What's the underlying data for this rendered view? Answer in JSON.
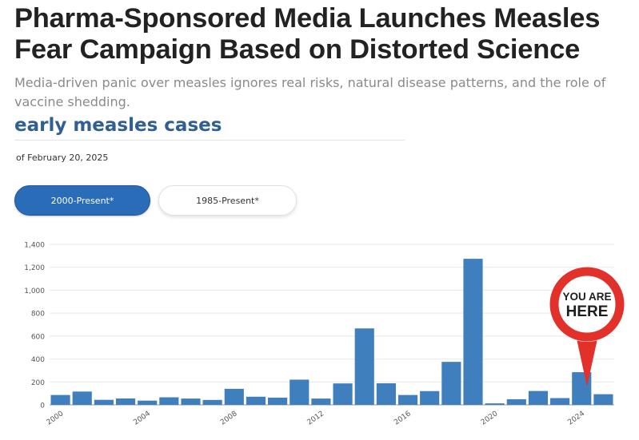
{
  "headline": "Pharma-Sponsored Media Launches Measles Fear Campaign Based on Distorted Science",
  "subtitle": "Media-driven panic over measles ignores real risks, natural disease patterns, and the role of vaccine shedding.",
  "chart_title": "early measles cases",
  "as_of": "of February 20, 2025",
  "buttons": {
    "active": "2000-Present*",
    "inactive": "1985-Present*"
  },
  "callout": {
    "line1": "YOU ARE",
    "line2": "HERE"
  },
  "colors": {
    "bar": "#3f7fbe",
    "button_active": "#2b6cb8",
    "callout": "#e2302b",
    "title": "#2f5f93"
  },
  "chart_data": {
    "type": "bar",
    "x": [
      2000,
      2001,
      2002,
      2003,
      2004,
      2005,
      2006,
      2007,
      2008,
      2009,
      2010,
      2011,
      2012,
      2013,
      2014,
      2015,
      2016,
      2017,
      2018,
      2019,
      2020,
      2021,
      2022,
      2023,
      2024,
      2025
    ],
    "values": [
      86,
      116,
      44,
      56,
      37,
      66,
      55,
      43,
      140,
      71,
      63,
      220,
      55,
      187,
      667,
      188,
      86,
      120,
      375,
      1274,
      13,
      49,
      121,
      59,
      285,
      93
    ],
    "xticks": [
      "2000",
      "2004",
      "2008",
      "2012",
      "2016",
      "2020",
      "2024"
    ],
    "yticks": [
      "0",
      "200",
      "400",
      "600",
      "800",
      "1,000",
      "1,200",
      "1,400"
    ],
    "ylim": [
      0,
      1400
    ],
    "grid": true
  }
}
